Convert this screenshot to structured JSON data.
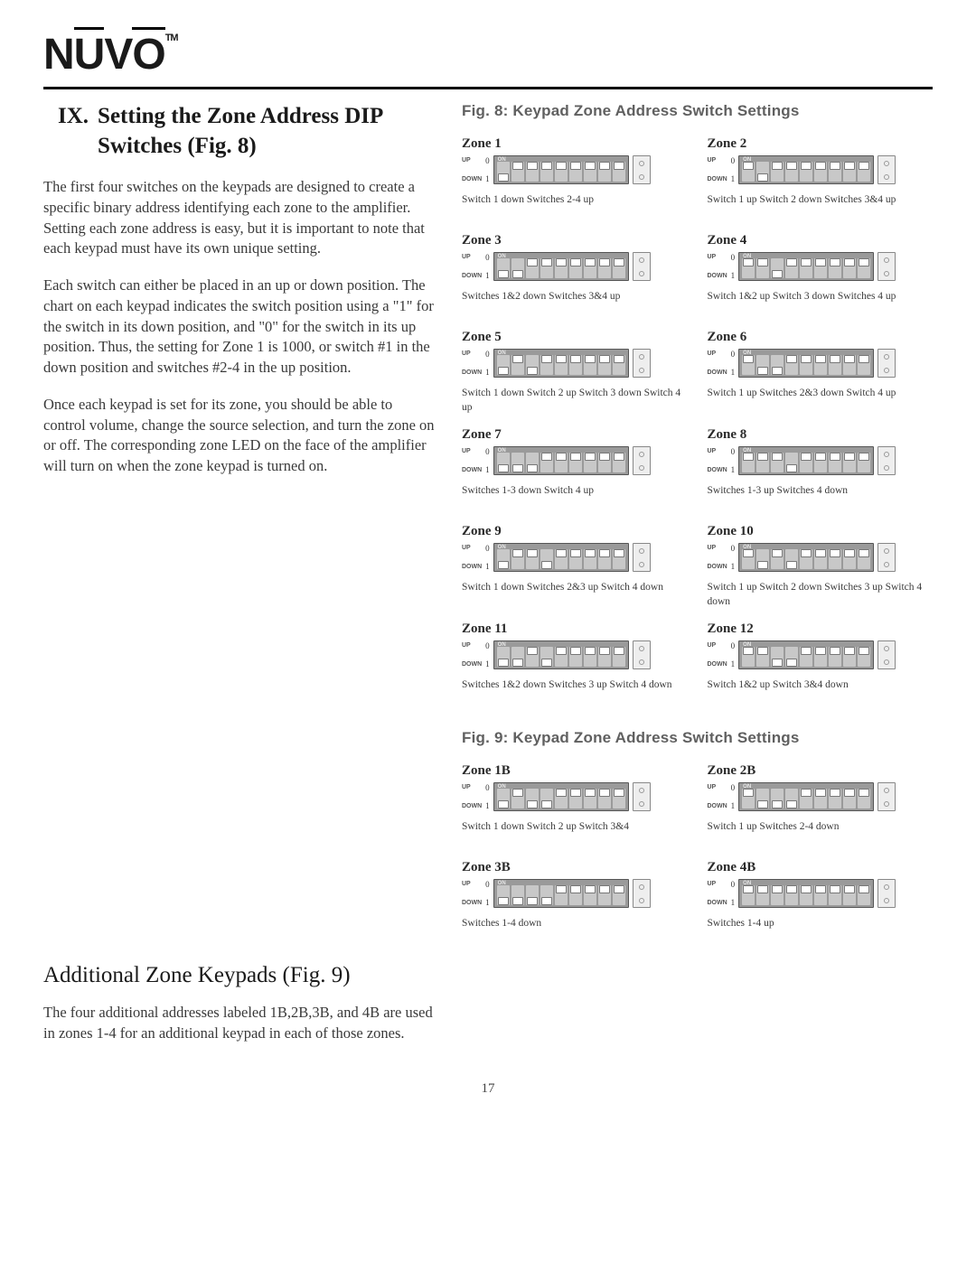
{
  "logo": {
    "text": "NUVO",
    "tm": "TM"
  },
  "section9": {
    "roman": "IX.",
    "title": "Setting the Zone Address DIP Switches (Fig. 8)",
    "paras": [
      "The first four switches on the keypads are designed to create a specific binary address identifying each zone to the amplifier.  Setting each zone address is easy, but it is important to note that each keypad must have its own unique setting.",
      "Each switch can either be placed in an up or down position. The chart on each keypad indicates the switch position using a \"1\" for the switch in its down position, and \"0\" for the switch in its up position. Thus, the setting for Zone 1 is 1000, or switch #1 in the down position and switches #2-4 in the up position.",
      "Once each keypad is set for its zone, you should be able to control volume, change the source selection, and turn the zone on or off. The corresponding zone LED on the face of the amplifier will turn on when the zone keypad is turned on."
    ]
  },
  "fig8": {
    "title": "Fig. 8: Keypad Zone Address Switch Settings",
    "upLabel": "UP",
    "downLabel": "DOWN",
    "zero": "0",
    "one": "1",
    "onLabel": "ON",
    "switch_bg": "#9a9a9a",
    "slot_bg": "#c8c8c8",
    "handle_bg": "#ffffff",
    "zones": [
      {
        "name": "Zone 1",
        "sw": [
          "down",
          "up",
          "up",
          "up",
          "up",
          "up",
          "up",
          "up",
          "up"
        ],
        "cap": "Switch 1 down  Switches 2-4 up"
      },
      {
        "name": "Zone 2",
        "sw": [
          "up",
          "down",
          "up",
          "up",
          "up",
          "up",
          "up",
          "up",
          "up"
        ],
        "cap": "Switch 1 up  Switch 2 down Switches 3&4 up"
      },
      {
        "name": "Zone 3",
        "sw": [
          "down",
          "down",
          "up",
          "up",
          "up",
          "up",
          "up",
          "up",
          "up"
        ],
        "cap": "Switches 1&2 down  Switches 3&4 up"
      },
      {
        "name": "Zone 4",
        "sw": [
          "up",
          "up",
          "down",
          "up",
          "up",
          "up",
          "up",
          "up",
          "up"
        ],
        "cap": "Switch 1&2 up  Switch 3 down Switches 4 up"
      },
      {
        "name": "Zone 5",
        "sw": [
          "down",
          "up",
          "down",
          "up",
          "up",
          "up",
          "up",
          "up",
          "up"
        ],
        "cap": "Switch 1 down  Switch 2 up Switch 3 down  Switch 4 up"
      },
      {
        "name": "Zone 6",
        "sw": [
          "up",
          "down",
          "down",
          "up",
          "up",
          "up",
          "up",
          "up",
          "up"
        ],
        "cap": "Switch 1 up  Switches 2&3 down Switch 4 up"
      },
      {
        "name": "Zone 7",
        "sw": [
          "down",
          "down",
          "down",
          "up",
          "up",
          "up",
          "up",
          "up",
          "up"
        ],
        "cap": "Switches 1-3 down  Switch 4 up"
      },
      {
        "name": "Zone 8",
        "sw": [
          "up",
          "up",
          "up",
          "down",
          "up",
          "up",
          "up",
          "up",
          "up"
        ],
        "cap": "Switches 1-3 up  Switches 4 down"
      },
      {
        "name": "Zone 9",
        "sw": [
          "down",
          "up",
          "up",
          "down",
          "up",
          "up",
          "up",
          "up",
          "up"
        ],
        "cap": "Switch 1 down  Switches 2&3 up Switch 4 down"
      },
      {
        "name": "Zone 10",
        "sw": [
          "up",
          "down",
          "up",
          "down",
          "up",
          "up",
          "up",
          "up",
          "up"
        ],
        "cap": "Switch 1 up  Switch 2 down Switches 3 up Switch 4 down"
      },
      {
        "name": "Zone 11",
        "sw": [
          "down",
          "down",
          "up",
          "down",
          "up",
          "up",
          "up",
          "up",
          "up"
        ],
        "cap": "Switches 1&2 down  Switches 3 up Switch 4 down"
      },
      {
        "name": "Zone 12",
        "sw": [
          "up",
          "up",
          "down",
          "down",
          "up",
          "up",
          "up",
          "up",
          "up"
        ],
        "cap": "Switch 1&2 up  Switch 3&4 down"
      }
    ]
  },
  "section_add": {
    "title": "Additional Zone Keypads (Fig. 9)",
    "para": "The four additional addresses labeled 1B,2B,3B, and 4B are used in zones 1-4 for an additional keypad in each of those zones."
  },
  "fig9": {
    "title": "Fig. 9: Keypad Zone Address Switch Settings",
    "zones": [
      {
        "name": "Zone 1B",
        "sw": [
          "down",
          "up",
          "down",
          "down",
          "up",
          "up",
          "up",
          "up",
          "up"
        ],
        "cap": "Switch 1 down  Switch 2 up Switch 3&4"
      },
      {
        "name": "Zone 2B",
        "sw": [
          "up",
          "down",
          "down",
          "down",
          "up",
          "up",
          "up",
          "up",
          "up"
        ],
        "cap": "Switch 1 up  Switches 2-4 down"
      },
      {
        "name": "Zone 3B",
        "sw": [
          "down",
          "down",
          "down",
          "down",
          "up",
          "up",
          "up",
          "up",
          "up"
        ],
        "cap": "Switches 1-4 down"
      },
      {
        "name": "Zone 4B",
        "sw": [
          "up",
          "up",
          "up",
          "up",
          "up",
          "up",
          "up",
          "up",
          "up"
        ],
        "cap": "Switches 1-4 up"
      }
    ]
  },
  "pageNumber": "17"
}
